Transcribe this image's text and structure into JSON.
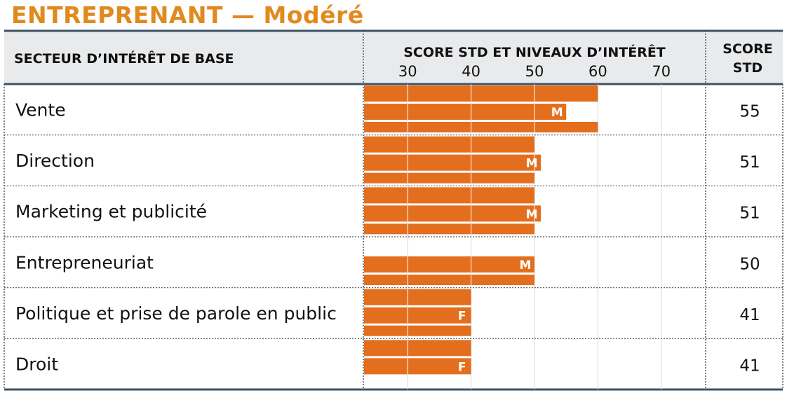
{
  "title": "ENTREPRENANT — Modéré",
  "header": {
    "sector_label": "SECTEUR D’INTÉRÊT DE BASE",
    "scale_label": "SCORE STD ET NIVEAUX D’INTÉRÊT",
    "score_label_line1": "SCORE",
    "score_label_line2": "STD"
  },
  "colors": {
    "title": "#e08a1e",
    "bar": "#e36f1e",
    "header_bg": "#e9eaec",
    "border": "#3d5366"
  },
  "chart_data": {
    "type": "bar",
    "orientation": "horizontal",
    "xlim": [
      23,
      77
    ],
    "ticks": [
      30,
      40,
      50,
      60,
      70
    ],
    "rows": [
      {
        "label": "Vente",
        "score": 55,
        "score_text": "55",
        "marker": "M",
        "female_bar": 60,
        "combined_bar": 55,
        "male_bar": 60
      },
      {
        "label": "Direction",
        "score": 51,
        "score_text": "51",
        "marker": "M",
        "female_bar": 50,
        "combined_bar": 51,
        "male_bar": 50
      },
      {
        "label": "Marketing et publicité",
        "score": 51,
        "score_text": "51",
        "marker": "M",
        "female_bar": 50,
        "combined_bar": 51,
        "male_bar": 50
      },
      {
        "label": "Entrepreneuriat",
        "score": 50,
        "score_text": "50",
        "marker": "M",
        "female_bar": null,
        "combined_bar": 50,
        "male_bar": 50
      },
      {
        "label": "Politique et prise de parole en public",
        "score": 41,
        "score_text": "41",
        "marker": "F",
        "female_bar": 40,
        "combined_bar": 40,
        "male_bar": 40
      },
      {
        "label": "Droit",
        "score": 41,
        "score_text": "41",
        "marker": "F",
        "female_bar": 40,
        "combined_bar": 40,
        "male_bar": null
      }
    ]
  }
}
